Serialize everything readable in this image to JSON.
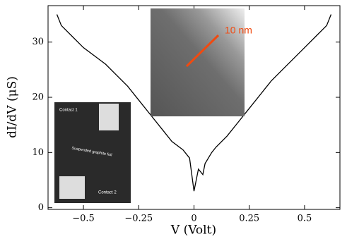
{
  "chart_data": {
    "type": "line",
    "x_label": "V (Volt)",
    "y_label": "dI/dV (μS)",
    "x": [
      -0.62,
      -0.6,
      -0.55,
      -0.5,
      -0.45,
      -0.4,
      -0.35,
      -0.3,
      -0.25,
      -0.2,
      -0.15,
      -0.1,
      -0.05,
      -0.02,
      0,
      0.02,
      0.04,
      0.05,
      0.08,
      0.1,
      0.15,
      0.2,
      0.25,
      0.3,
      0.35,
      0.4,
      0.45,
      0.5,
      0.55,
      0.6,
      0.62
    ],
    "series": [
      {
        "color": "#000000",
        "values": [
          35,
          33,
          31,
          29,
          27.5,
          26,
          24,
          22,
          19.5,
          17,
          14.5,
          12,
          10.5,
          9,
          3,
          7,
          6,
          8,
          10,
          11,
          13,
          15.5,
          18,
          20.5,
          23,
          25,
          27,
          29,
          31,
          33,
          35
        ]
      }
    ],
    "xlim": [
      -0.66,
      0.66
    ],
    "ylim": [
      -0.3,
      36.6
    ],
    "xticks": [
      {
        "value": -0.5,
        "label": "−0.5"
      },
      {
        "value": -0.25,
        "label": "−0.25"
      },
      0,
      0.25,
      0.5
    ],
    "yticks": [
      0,
      10,
      20,
      30
    ],
    "annotations": [
      "10 nm",
      "Contact 1",
      "Suspended graphite foil",
      "Contact 2"
    ]
  }
}
